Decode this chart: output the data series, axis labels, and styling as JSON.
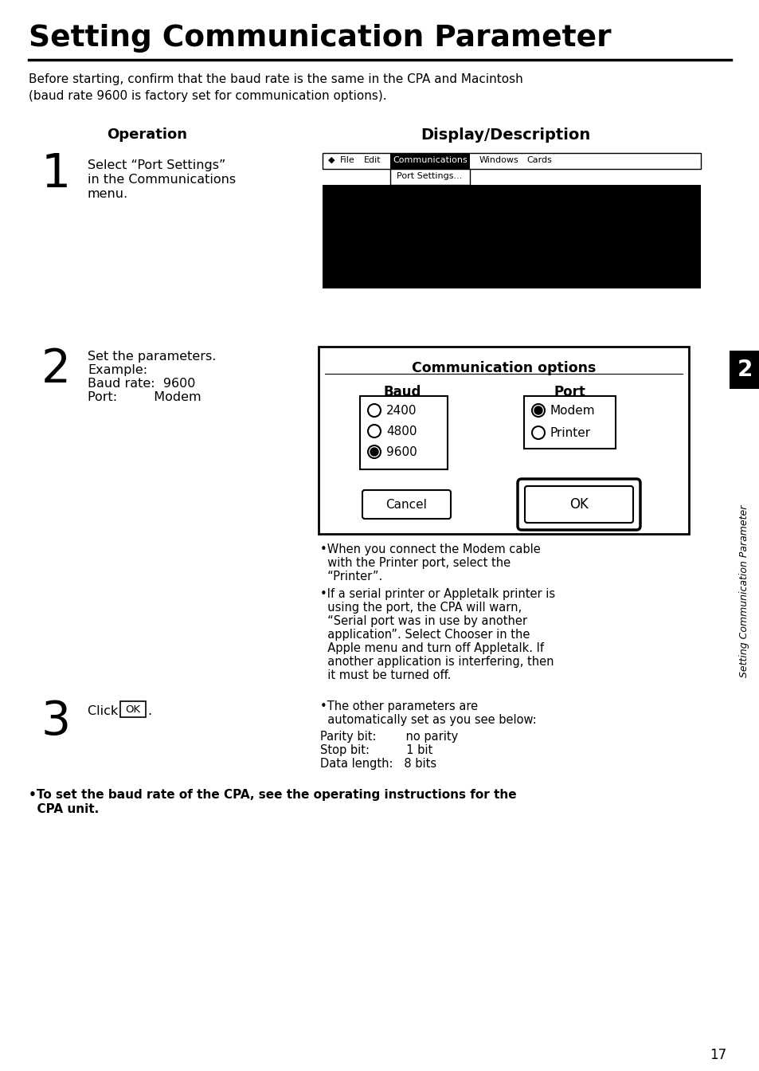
{
  "title": "Setting Communication Parameter",
  "subtitle_line1": "Before starting, confirm that the baud rate is the same in the CPA and Macintosh",
  "subtitle_line2": "(baud rate 9600 is factory set for communication options).",
  "col1_header": "Operation",
  "col2_header": "Display/Description",
  "step1_num": "1",
  "step1_op_line1": "Select “Port Settings”",
  "step1_op_line2": "in the Communications",
  "step1_op_line3": "menu.",
  "step2_num": "2",
  "step2_op_line1": "Set the parameters.",
  "step2_op_line2": "Example:",
  "step2_op_line3": "Baud rate:  9600",
  "step2_op_line4": "Port:         Modem",
  "step3_num": "3",
  "step3_op": "Click",
  "comm_opts_title": "Communication options",
  "baud_label": "Baud",
  "port_label": "Port",
  "baud_options": [
    "2400",
    "4800",
    "9600"
  ],
  "baud_selected": 2,
  "port_options": [
    "Modem",
    "Printer"
  ],
  "port_selected": 0,
  "cancel_btn": "Cancel",
  "ok_btn": "OK",
  "menu_items": [
    "◆",
    "File",
    "Edit",
    "Communications",
    "Windows",
    "Cards"
  ],
  "menu_dropdown": "Port Settings...",
  "bullet1_line1": "•When you connect the Modem cable",
  "bullet1_line2": "  with the Printer port, select the",
  "bullet1_line3": "  “Printer”.",
  "bullet2_line1": "•If a serial printer or Appletalk printer is",
  "bullet2_line2": "  using the port, the CPA will warn,",
  "bullet2_line3": "  “Serial port was in use by another",
  "bullet2_line4": "  application”. Select Chooser in the",
  "bullet2_line5": "  Apple menu and turn off Appletalk. If",
  "bullet2_line6": "  another application is interfering, then",
  "bullet2_line7": "  it must be turned off.",
  "step3_desc_line1": "•The other parameters are",
  "step3_desc_line2": "  automatically set as you see below:",
  "step3_desc_line3": "Parity bit:        no parity",
  "step3_desc_line4": "Stop bit:          1 bit",
  "step3_desc_line5": "Data length:   8 bits",
  "footer_line1": "•To set the baud rate of the CPA, see the operating instructions for the",
  "footer_line2": "  CPA unit.",
  "page_num": "17",
  "sidebar_text": "Setting Communication Parameter",
  "bg_color": "#ffffff",
  "text_color": "#000000",
  "sidebar_bg": "#111111"
}
